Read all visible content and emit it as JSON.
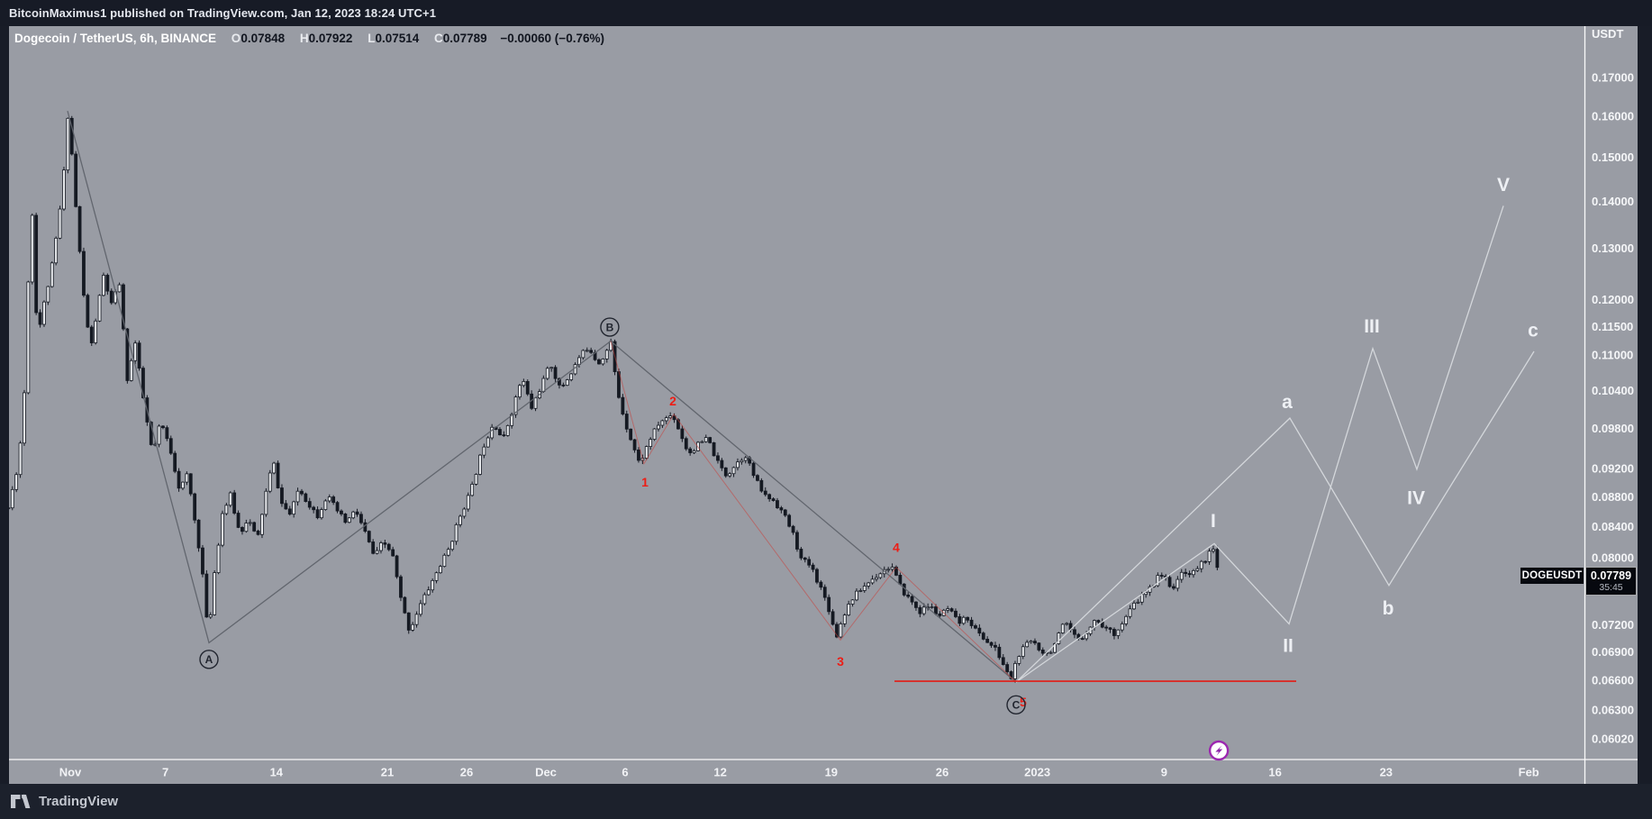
{
  "attribution": "BitcoinMaximus1 published on TradingView.com, Jan 12, 2023 18:24 UTC+1",
  "header": {
    "title": "Dogecoin / TetherUS, 6h, BINANCE",
    "fields": [
      {
        "label": "O",
        "value": "0.07848"
      },
      {
        "label": "H",
        "value": "0.07922"
      },
      {
        "label": "L",
        "value": "0.07514"
      },
      {
        "label": "C",
        "value": "0.07789"
      }
    ],
    "change": "−0.00060 (−0.76%)"
  },
  "price_scale": {
    "currency": "USDT",
    "ticks": [
      {
        "label": "0.17000",
        "value": 0.17
      },
      {
        "label": "0.16000",
        "value": 0.16
      },
      {
        "label": "0.15000",
        "value": 0.15
      },
      {
        "label": "0.14000",
        "value": 0.14
      },
      {
        "label": "0.13000",
        "value": 0.13
      },
      {
        "label": "0.12000",
        "value": 0.12
      },
      {
        "label": "0.11500",
        "value": 0.115
      },
      {
        "label": "0.11000",
        "value": 0.11
      },
      {
        "label": "0.10400",
        "value": 0.104
      },
      {
        "label": "0.09800",
        "value": 0.098
      },
      {
        "label": "0.09200",
        "value": 0.092
      },
      {
        "label": "0.08800",
        "value": 0.088
      },
      {
        "label": "0.08400",
        "value": 0.084
      },
      {
        "label": "0.08000",
        "value": 0.08
      },
      {
        "label": "0.07200",
        "value": 0.072
      },
      {
        "label": "0.06900",
        "value": 0.069
      },
      {
        "label": "0.06600",
        "value": 0.066
      },
      {
        "label": "0.06300",
        "value": 0.063
      },
      {
        "label": "0.06020",
        "value": 0.0602
      }
    ]
  },
  "time_axis": {
    "labels": [
      {
        "text": "Nov",
        "day": 0
      },
      {
        "text": "7",
        "day": 6
      },
      {
        "text": "14",
        "day": 13
      },
      {
        "text": "21",
        "day": 20
      },
      {
        "text": "26",
        "day": 25
      },
      {
        "text": "Dec",
        "day": 30
      },
      {
        "text": "6",
        "day": 35
      },
      {
        "text": "12",
        "day": 41
      },
      {
        "text": "19",
        "day": 48
      },
      {
        "text": "26",
        "day": 55
      },
      {
        "text": "2023",
        "day": 61
      },
      {
        "text": "9",
        "day": 69
      },
      {
        "text": "16",
        "day": 76
      },
      {
        "text": "23",
        "day": 83
      },
      {
        "text": "Feb",
        "day": 92
      }
    ]
  },
  "price_label": {
    "symbol": "DOGEUSDT",
    "price": "0.07789",
    "countdown": "35:45"
  },
  "footer": {
    "logo_text": "TradingView"
  },
  "chart_data": {
    "type": "candlestick",
    "title": "Dogecoin / TetherUS",
    "symbol": "DOGEUSDT",
    "exchange": "BINANCE",
    "interval": "6h",
    "scale": "log",
    "ylim": [
      0.0602,
      0.17
    ],
    "last_bar": {
      "open": 0.07848,
      "high": 0.07922,
      "low": 0.07514,
      "close": 0.07789,
      "change": -0.0006,
      "change_pct": -0.76
    },
    "day_zero": "Nov 1 2022",
    "price_path": [
      [
        -3.9,
        0.0865
      ],
      [
        -3.4,
        0.0915
      ],
      [
        -3.0,
        0.0985
      ],
      [
        -2.7,
        0.115
      ],
      [
        -2.5,
        0.154
      ],
      [
        -2.3,
        0.122
      ],
      [
        -2.0,
        0.114
      ],
      [
        -1.6,
        0.12
      ],
      [
        -1.2,
        0.1255
      ],
      [
        -0.8,
        0.134
      ],
      [
        -0.45,
        0.144
      ],
      [
        -0.1,
        0.163
      ],
      [
        0.2,
        0.145
      ],
      [
        0.55,
        0.131
      ],
      [
        0.9,
        0.119
      ],
      [
        1.3,
        0.111
      ],
      [
        1.7,
        0.118
      ],
      [
        2.1,
        0.1245
      ],
      [
        2.6,
        0.119
      ],
      [
        3.1,
        0.123
      ],
      [
        3.6,
        0.106
      ],
      [
        4.1,
        0.112
      ],
      [
        4.7,
        0.101
      ],
      [
        5.2,
        0.094
      ],
      [
        5.7,
        0.099
      ],
      [
        6.3,
        0.095
      ],
      [
        6.9,
        0.089
      ],
      [
        7.4,
        0.0912
      ],
      [
        7.9,
        0.0842
      ],
      [
        8.3,
        0.079
      ],
      [
        8.7,
        0.0706
      ],
      [
        9.1,
        0.0782
      ],
      [
        9.6,
        0.0858
      ],
      [
        10.1,
        0.0882
      ],
      [
        10.7,
        0.083
      ],
      [
        11.2,
        0.0852
      ],
      [
        11.8,
        0.0822
      ],
      [
        12.3,
        0.0882
      ],
      [
        12.8,
        0.0932
      ],
      [
        13.3,
        0.0872
      ],
      [
        13.9,
        0.0855
      ],
      [
        14.4,
        0.0892
      ],
      [
        15.0,
        0.0872
      ],
      [
        15.6,
        0.0855
      ],
      [
        16.2,
        0.0882
      ],
      [
        16.8,
        0.0862
      ],
      [
        17.4,
        0.0845
      ],
      [
        18.0,
        0.0862
      ],
      [
        18.6,
        0.0832
      ],
      [
        19.2,
        0.08
      ],
      [
        19.7,
        0.082
      ],
      [
        20.3,
        0.0806
      ],
      [
        20.9,
        0.0745
      ],
      [
        21.4,
        0.0713
      ],
      [
        22.0,
        0.074
      ],
      [
        22.6,
        0.0762
      ],
      [
        23.2,
        0.0785
      ],
      [
        23.9,
        0.0812
      ],
      [
        24.6,
        0.0855
      ],
      [
        25.3,
        0.089
      ],
      [
        26.0,
        0.095
      ],
      [
        26.7,
        0.099
      ],
      [
        27.3,
        0.0962
      ],
      [
        27.9,
        0.101
      ],
      [
        28.5,
        0.1062
      ],
      [
        29.1,
        0.1012
      ],
      [
        29.7,
        0.1048
      ],
      [
        30.3,
        0.1085
      ],
      [
        30.9,
        0.1042
      ],
      [
        31.5,
        0.1065
      ],
      [
        32.1,
        0.1095
      ],
      [
        32.7,
        0.1115
      ],
      [
        33.3,
        0.1085
      ],
      [
        33.8,
        0.1105
      ],
      [
        34.1,
        0.1121
      ],
      [
        34.5,
        0.104
      ],
      [
        35.0,
        0.099
      ],
      [
        35.9,
        0.0927
      ],
      [
        36.6,
        0.0965
      ],
      [
        37.2,
        0.099
      ],
      [
        38.0,
        0.1002
      ],
      [
        38.5,
        0.0972
      ],
      [
        39.0,
        0.0942
      ],
      [
        39.6,
        0.0955
      ],
      [
        40.2,
        0.0965
      ],
      [
        40.8,
        0.093
      ],
      [
        41.4,
        0.091
      ],
      [
        42.0,
        0.0928
      ],
      [
        42.6,
        0.094
      ],
      [
        43.2,
        0.0905
      ],
      [
        43.8,
        0.0882
      ],
      [
        44.4,
        0.0875
      ],
      [
        45.0,
        0.0857
      ],
      [
        45.6,
        0.083
      ],
      [
        46.1,
        0.0798
      ],
      [
        46.7,
        0.079
      ],
      [
        47.3,
        0.0765
      ],
      [
        47.8,
        0.0742
      ],
      [
        48.3,
        0.0706
      ],
      [
        48.8,
        0.0732
      ],
      [
        49.3,
        0.075
      ],
      [
        49.9,
        0.0762
      ],
      [
        50.5,
        0.0772
      ],
      [
        51.1,
        0.0782
      ],
      [
        51.8,
        0.079
      ],
      [
        52.4,
        0.0762
      ],
      [
        53.0,
        0.0748
      ],
      [
        53.6,
        0.0735
      ],
      [
        54.2,
        0.0742
      ],
      [
        54.8,
        0.073
      ],
      [
        55.4,
        0.0738
      ],
      [
        56.0,
        0.0722
      ],
      [
        56.6,
        0.0728
      ],
      [
        57.2,
        0.0712
      ],
      [
        57.8,
        0.0702
      ],
      [
        58.4,
        0.0692
      ],
      [
        58.9,
        0.0675
      ],
      [
        59.3,
        0.066
      ],
      [
        59.7,
        0.0682
      ],
      [
        60.2,
        0.0696
      ],
      [
        60.7,
        0.0703
      ],
      [
        61.2,
        0.0692
      ],
      [
        61.7,
        0.0688
      ],
      [
        62.2,
        0.0702
      ],
      [
        62.7,
        0.0722
      ],
      [
        63.2,
        0.071
      ],
      [
        63.7,
        0.0701
      ],
      [
        64.2,
        0.0716
      ],
      [
        64.7,
        0.0726
      ],
      [
        65.2,
        0.0718
      ],
      [
        65.8,
        0.071
      ],
      [
        66.4,
        0.0722
      ],
      [
        67.0,
        0.0741
      ],
      [
        67.6,
        0.0753
      ],
      [
        68.2,
        0.0763
      ],
      [
        68.7,
        0.0783
      ],
      [
        69.2,
        0.077
      ],
      [
        69.7,
        0.0763
      ],
      [
        70.2,
        0.0786
      ],
      [
        70.7,
        0.0778
      ],
      [
        71.2,
        0.079
      ],
      [
        71.7,
        0.08
      ],
      [
        72.0,
        0.0822
      ],
      [
        72.2,
        0.0795
      ],
      [
        72.45,
        0.0779
      ]
    ],
    "annotations": {
      "gray_zigzag": [
        [
          -0.17,
          0.1613
        ],
        [
          8.75,
          0.07
        ],
        [
          34.09,
          0.1124
        ],
        [
          59.66,
          0.0658
        ]
      ],
      "red_zigzag": [
        [
          34.09,
          0.1124
        ],
        [
          36.19,
          0.0927
        ],
        [
          38.07,
          0.1002
        ],
        [
          48.58,
          0.0703
        ],
        [
          52.1,
          0.0788
        ],
        [
          59.66,
          0.0658
        ]
      ],
      "white_impulse": [
        [
          59.66,
          0.0658
        ],
        [
          72.16,
          0.0818
        ],
        [
          76.88,
          0.0721
        ],
        [
          82.16,
          0.1111
        ],
        [
          84.94,
          0.0919
        ],
        [
          90.4,
          0.139
        ]
      ],
      "white_correction": [
        [
          59.66,
          0.0658
        ],
        [
          76.93,
          0.0996
        ],
        [
          83.18,
          0.0766
        ],
        [
          92.33,
          0.1106
        ]
      ],
      "support_line": {
        "price": 0.0659,
        "from_day": 51.99,
        "to_day": 77.33
      },
      "labels": [
        {
          "text": "A",
          "kind": "circle",
          "day": 8.75,
          "price": 0.0682
        },
        {
          "text": "B",
          "kind": "circle",
          "day": 34.03,
          "price": 0.1149
        },
        {
          "text": "5",
          "kind": "red",
          "day": 60.11,
          "price": 0.0638
        },
        {
          "text": "C",
          "kind": "circle",
          "day": 59.66,
          "price": 0.0635
        },
        {
          "text": "1",
          "kind": "red",
          "day": 36.25,
          "price": 0.0901
        },
        {
          "text": "2",
          "kind": "red",
          "day": 38.01,
          "price": 0.1023
        },
        {
          "text": "3",
          "kind": "red",
          "day": 48.58,
          "price": 0.068
        },
        {
          "text": "4",
          "kind": "red",
          "day": 52.1,
          "price": 0.0813
        },
        {
          "text": "I",
          "kind": "white",
          "day": 72.1,
          "price": 0.0848
        },
        {
          "text": "II",
          "kind": "white",
          "day": 76.82,
          "price": 0.0697
        },
        {
          "text": "a",
          "kind": "white",
          "day": 76.76,
          "price": 0.1022
        },
        {
          "text": "b",
          "kind": "white",
          "day": 83.13,
          "price": 0.0739
        },
        {
          "text": "III",
          "kind": "white",
          "day": 82.1,
          "price": 0.1151
        },
        {
          "text": "IV",
          "kind": "white",
          "day": 84.89,
          "price": 0.0879
        },
        {
          "text": "V",
          "kind": "white",
          "day": 90.4,
          "price": 0.1437
        },
        {
          "text": "c",
          "kind": "white",
          "day": 92.27,
          "price": 0.1143
        }
      ],
      "publish_marker": {
        "day": 72.45
      }
    },
    "colors": {
      "panel_bg": "#999ca4",
      "frame_bg": "#181c27",
      "candle_down": "#151922",
      "candle_up_fill": "#e7e9ec",
      "trend_gray": "#5f636b",
      "wave_red": "#ed1d15",
      "projection_white": "#d7dade",
      "support_red": "#e31b14",
      "marker_purple": "#9c27b0"
    }
  }
}
